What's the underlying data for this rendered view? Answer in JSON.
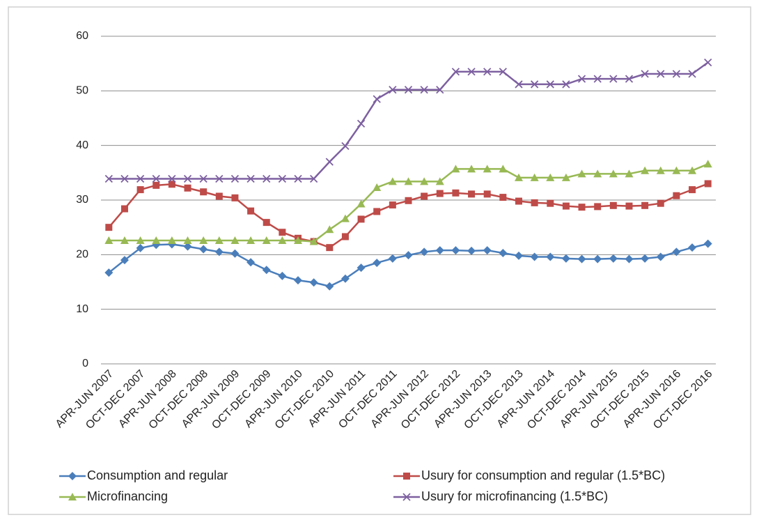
{
  "chart_data": {
    "type": "line",
    "categories": [
      "APR-JUN 2007",
      null,
      "OCT-DEC 2007",
      null,
      "APR-JUN 2008",
      null,
      "OCT-DEC 2008",
      null,
      "APR-JUN 2009",
      null,
      "OCT-DEC 2009",
      null,
      "APR-JUN 2010",
      null,
      "OCT-DEC 2010",
      null,
      "APR-JUN 2011",
      null,
      "OCT-DEC 2011",
      null,
      "APR-JUN 2012",
      null,
      "OCT-DEC 2012",
      null,
      "APR-JUN 2013",
      null,
      "OCT-DEC 2013",
      null,
      "APR-JUN 2014",
      null,
      "OCT-DEC 2014",
      null,
      "APR-JUN 2015",
      null,
      "OCT-DEC 2015",
      null,
      "APR-JUN 2016",
      null,
      "OCT-DEC 2016"
    ],
    "series": [
      {
        "name": "Consumption and regular",
        "color": "#4a7ebb",
        "marker": "diamond",
        "values": [
          16.7,
          19,
          21.2,
          21.8,
          21.9,
          21.5,
          21,
          20.5,
          20.2,
          18.6,
          17.2,
          16.1,
          15.3,
          14.9,
          14.2,
          15.6,
          17.6,
          18.5,
          19.3,
          19.9,
          20.5,
          20.8,
          20.8,
          20.7,
          20.8,
          20.3,
          19.8,
          19.6,
          19.6,
          19.3,
          19.2,
          19.2,
          19.3,
          19.2,
          19.3,
          19.6,
          20.5,
          21.3,
          22.0
        ]
      },
      {
        "name": "Usury for consumption and regular (1.5*BC)",
        "color": "#be4b48",
        "marker": "square",
        "values": [
          25,
          28.4,
          31.9,
          32.7,
          32.9,
          32.2,
          31.5,
          30.7,
          30.4,
          28,
          25.9,
          24.1,
          23,
          22.4,
          21.3,
          23.3,
          26.5,
          27.9,
          29.1,
          29.9,
          30.7,
          31.2,
          31.3,
          31.1,
          31.1,
          30.5,
          29.8,
          29.5,
          29.4,
          28.9,
          28.7,
          28.8,
          29,
          28.9,
          29,
          29.4,
          30.8,
          31.9,
          33
        ]
      },
      {
        "name": "Microfinancing",
        "color": "#98b954",
        "marker": "triangle",
        "values": [
          22.6,
          22.6,
          22.6,
          22.6,
          22.6,
          22.6,
          22.6,
          22.6,
          22.6,
          22.6,
          22.6,
          22.6,
          22.6,
          22.4,
          24.6,
          26.6,
          29.3,
          32.3,
          33.4,
          33.4,
          33.4,
          33.4,
          35.7,
          35.7,
          35.7,
          35.7,
          34.1,
          34.1,
          34.1,
          34.1,
          34.8,
          34.8,
          34.8,
          34.8,
          35.4,
          35.4,
          35.4,
          35.4,
          36.6
        ]
      },
      {
        "name": "Usury for microfinancing (1.5*BC)",
        "color": "#7d60a0",
        "marker": "x",
        "values": [
          33.9,
          33.9,
          33.9,
          33.9,
          33.9,
          33.9,
          33.9,
          33.9,
          33.9,
          33.9,
          33.9,
          33.9,
          33.9,
          33.9,
          37,
          39.9,
          44,
          48.5,
          50.2,
          50.2,
          50.2,
          50.2,
          53.5,
          53.5,
          53.5,
          53.5,
          51.2,
          51.2,
          51.2,
          51.2,
          52.2,
          52.2,
          52.2,
          52.2,
          53.1,
          53.1,
          53.1,
          53.1,
          55.2
        ]
      }
    ],
    "ylim": [
      0,
      60
    ],
    "yticks": [
      0,
      10,
      20,
      30,
      40,
      50,
      60
    ],
    "grid": true,
    "legend": "bottom"
  }
}
